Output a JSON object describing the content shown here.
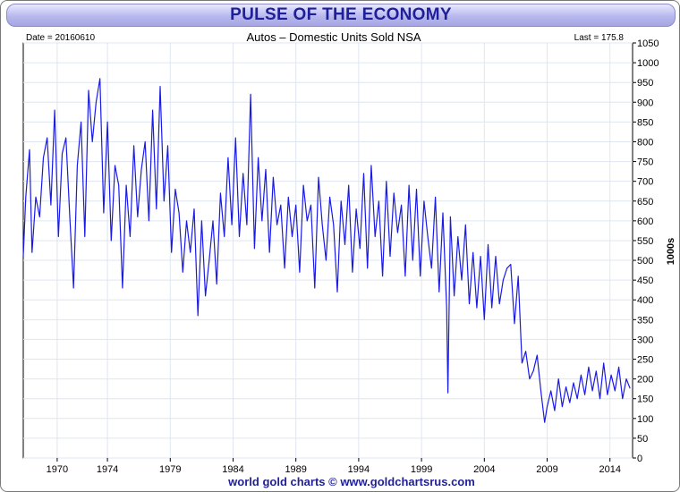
{
  "header": {
    "title": "PULSE OF THE ECONOMY",
    "date_label": "Date = 20160610",
    "last_label": "Last = 175.8"
  },
  "footer": {
    "credit": "world gold charts © www.goldchartsrus.com"
  },
  "colors": {
    "line": "#1a1ae6",
    "title": "#1f1f9a",
    "grid": "#dfe6f0"
  },
  "chart_data": {
    "type": "line",
    "title": "Autos – Domestic Units Sold NSA",
    "xlabel": "",
    "ylabel": "1000s",
    "xlim": [
      1967.3,
      2015.8
    ],
    "ylim": [
      0,
      1050
    ],
    "y_ticks": [
      0,
      50,
      100,
      150,
      200,
      250,
      300,
      350,
      400,
      450,
      500,
      550,
      600,
      650,
      700,
      750,
      800,
      850,
      900,
      950,
      1000,
      1050
    ],
    "x_ticks": [
      1970,
      1974,
      1979,
      1984,
      1989,
      1994,
      1999,
      2004,
      2009,
      2014
    ],
    "grid": true,
    "y_axis_side": "right",
    "series": [
      {
        "name": "",
        "x": [
          1967.3,
          1967.5,
          1967.8,
          1968.0,
          1968.3,
          1968.6,
          1968.9,
          1969.2,
          1969.5,
          1969.8,
          1970.1,
          1970.4,
          1970.7,
          1971.0,
          1971.3,
          1971.6,
          1971.9,
          1972.2,
          1972.5,
          1972.8,
          1973.1,
          1973.4,
          1973.7,
          1974.0,
          1974.3,
          1974.6,
          1974.9,
          1975.2,
          1975.5,
          1975.8,
          1976.1,
          1976.4,
          1976.7,
          1977.0,
          1977.3,
          1977.6,
          1977.9,
          1978.2,
          1978.5,
          1978.8,
          1979.1,
          1979.4,
          1979.7,
          1980.0,
          1980.3,
          1980.6,
          1980.9,
          1981.2,
          1981.5,
          1981.8,
          1982.1,
          1982.4,
          1982.7,
          1983.0,
          1983.3,
          1983.6,
          1983.9,
          1984.2,
          1984.5,
          1984.8,
          1985.1,
          1985.4,
          1985.7,
          1986.0,
          1986.3,
          1986.6,
          1986.9,
          1987.2,
          1987.5,
          1987.8,
          1988.1,
          1988.4,
          1988.7,
          1989.0,
          1989.3,
          1989.6,
          1989.9,
          1990.2,
          1990.5,
          1990.8,
          1991.1,
          1991.4,
          1991.7,
          1992.0,
          1992.3,
          1992.6,
          1992.9,
          1993.2,
          1993.5,
          1993.8,
          1994.1,
          1994.4,
          1994.7,
          1995.0,
          1995.3,
          1995.6,
          1995.9,
          1996.2,
          1996.5,
          1996.8,
          1997.1,
          1997.4,
          1997.7,
          1998.0,
          1998.3,
          1998.6,
          1998.9,
          1999.2,
          1999.5,
          1999.8,
          2000.1,
          2000.4,
          2000.7,
          2001.0,
          2001.1,
          2001.3,
          2001.6,
          2001.9,
          2002.2,
          2002.5,
          2002.8,
          2003.1,
          2003.4,
          2003.7,
          2004.0,
          2004.3,
          2004.6,
          2004.9,
          2005.2,
          2005.5,
          2005.8,
          2006.1,
          2006.4,
          2006.7,
          2007.0,
          2007.3,
          2007.6,
          2007.9,
          2008.2,
          2008.5,
          2008.8,
          2009.0,
          2009.3,
          2009.6,
          2009.9,
          2010.2,
          2010.5,
          2010.8,
          2011.1,
          2011.4,
          2011.7,
          2012.0,
          2012.3,
          2012.6,
          2012.9,
          2013.2,
          2013.5,
          2013.8,
          2014.1,
          2014.4,
          2014.7,
          2015.0,
          2015.3,
          2015.6
        ],
        "values": [
          510,
          660,
          780,
          520,
          660,
          610,
          760,
          810,
          640,
          880,
          560,
          770,
          810,
          610,
          430,
          740,
          850,
          560,
          930,
          800,
          900,
          960,
          620,
          850,
          550,
          740,
          690,
          430,
          690,
          560,
          790,
          610,
          730,
          800,
          600,
          880,
          630,
          940,
          650,
          790,
          520,
          680,
          620,
          470,
          600,
          520,
          630,
          360,
          600,
          410,
          500,
          600,
          440,
          670,
          560,
          760,
          590,
          810,
          560,
          720,
          590,
          920,
          530,
          760,
          600,
          730,
          520,
          710,
          590,
          640,
          480,
          660,
          560,
          640,
          470,
          690,
          600,
          640,
          430,
          710,
          590,
          500,
          660,
          590,
          420,
          650,
          540,
          690,
          470,
          630,
          530,
          720,
          480,
          740,
          560,
          650,
          460,
          700,
          510,
          670,
          570,
          640,
          460,
          690,
          500,
          680,
          460,
          650,
          560,
          480,
          660,
          420,
          620,
          380,
          165,
          610,
          410,
          560,
          450,
          590,
          390,
          520,
          380,
          510,
          350,
          540,
          380,
          510,
          390,
          450,
          480,
          490,
          340,
          460,
          240,
          270,
          200,
          220,
          260,
          170,
          90,
          130,
          170,
          120,
          200,
          130,
          180,
          140,
          190,
          150,
          210,
          160,
          230,
          170,
          220,
          150,
          240,
          160,
          210,
          170,
          230,
          150,
          200,
          176
        ]
      }
    ]
  }
}
